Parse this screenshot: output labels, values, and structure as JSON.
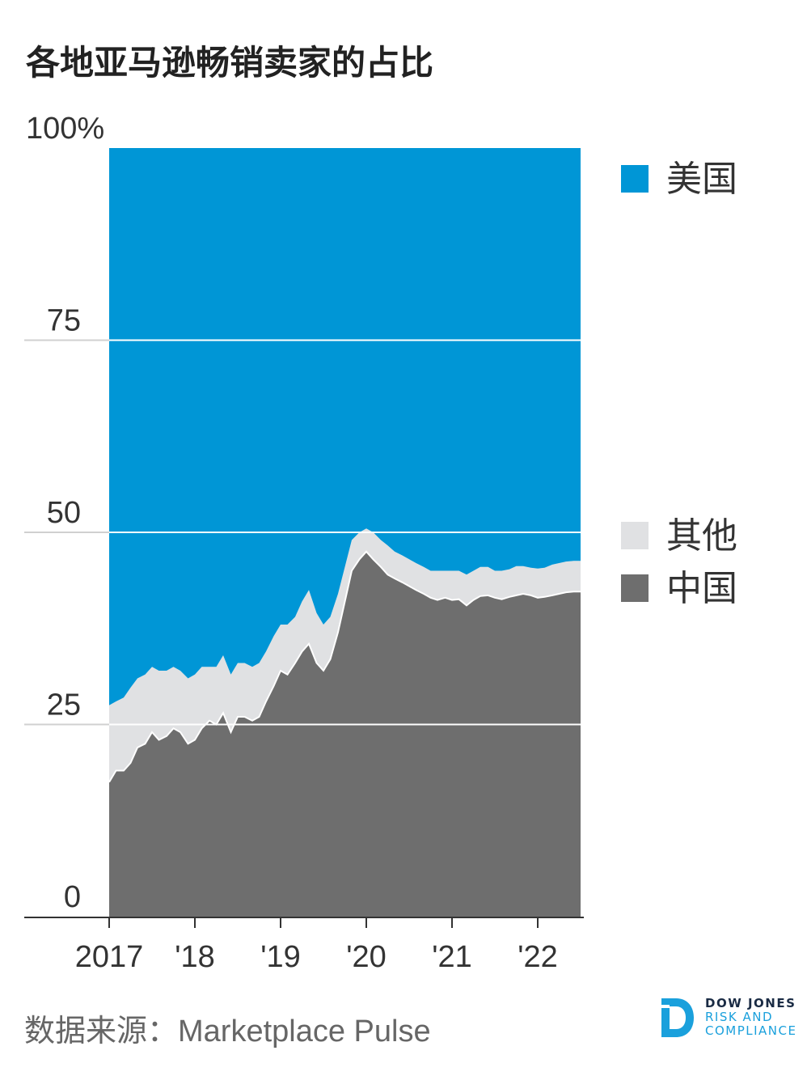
{
  "title": "各地亚马逊畅销卖家的占比",
  "source": "数据来源：Marketplace Pulse",
  "logo": {
    "line1": "DOW JONES",
    "line2": "RISK AND",
    "line3": "COMPLIANCE"
  },
  "colors": {
    "us": "#0096d6",
    "other": "#e0e1e3",
    "china": "#6e6e6e",
    "axis": "#333333",
    "grid": "#ffffff"
  },
  "legend": {
    "us": "美国",
    "other": "其他",
    "china": "中国"
  },
  "chart_data": {
    "type": "area",
    "stacked": true,
    "ylim": [
      0,
      100
    ],
    "y_ticks": [
      0,
      25,
      50,
      75,
      100
    ],
    "y_tick_labels": [
      "0",
      "25",
      "50",
      "75",
      "100%"
    ],
    "x_range": [
      2017.0,
      2022.5
    ],
    "x_ticks": [
      2017,
      2018,
      2019,
      2020,
      2021,
      2022
    ],
    "x_tick_labels": [
      "2017",
      "'18",
      "'19",
      "'20",
      "'21",
      "'22"
    ],
    "x": [
      2017.0,
      2017.08,
      2017.17,
      2017.25,
      2017.33,
      2017.42,
      2017.5,
      2017.58,
      2017.67,
      2017.75,
      2017.83,
      2017.92,
      2018.0,
      2018.08,
      2018.17,
      2018.25,
      2018.33,
      2018.42,
      2018.5,
      2018.58,
      2018.67,
      2018.75,
      2018.83,
      2018.92,
      2019.0,
      2019.08,
      2019.17,
      2019.25,
      2019.33,
      2019.42,
      2019.5,
      2019.58,
      2019.67,
      2019.75,
      2019.83,
      2019.92,
      2020.0,
      2020.08,
      2020.17,
      2020.25,
      2020.33,
      2020.42,
      2020.5,
      2020.58,
      2020.67,
      2020.75,
      2020.83,
      2020.92,
      2021.0,
      2021.08,
      2021.17,
      2021.25,
      2021.33,
      2021.42,
      2021.5,
      2021.58,
      2021.67,
      2021.75,
      2021.83,
      2021.92,
      2022.0,
      2022.08,
      2022.17,
      2022.25,
      2022.33,
      2022.42,
      2022.5
    ],
    "series": [
      {
        "name": "中国",
        "values": [
          17.5,
          19,
          19,
          20,
          22,
          22.5,
          24,
          23,
          23.5,
          24.5,
          24,
          22.5,
          23,
          24.5,
          25.5,
          25,
          26.5,
          24,
          26,
          26,
          25.5,
          26,
          28,
          30,
          32,
          31.5,
          33,
          34.5,
          35.5,
          33,
          32,
          33.5,
          37,
          41,
          45,
          46.5,
          47.5,
          46.5,
          45.5,
          44.5,
          44,
          43.5,
          43,
          42.5,
          42,
          41.5,
          41.2,
          41.5,
          41.2,
          41.3,
          40.5,
          41.2,
          41.7,
          41.8,
          41.5,
          41.3,
          41.6,
          41.8,
          42,
          41.8,
          41.5,
          41.6,
          41.8,
          42,
          42.2,
          42.3,
          42.3
        ]
      },
      {
        "name": "其他",
        "values": [
          10,
          9,
          9.5,
          9.8,
          9,
          9,
          8.5,
          9,
          8.5,
          8,
          8,
          8.5,
          8.5,
          8,
          7,
          7.5,
          7.5,
          7.5,
          7,
          7,
          7,
          7,
          6.5,
          6.5,
          6,
          6.5,
          6,
          6.5,
          7,
          6.5,
          6,
          5.5,
          5,
          4.5,
          4,
          3.5,
          3,
          3.5,
          3.5,
          3.8,
          3.5,
          3.5,
          3.5,
          3.5,
          3.5,
          3.5,
          3.8,
          3.5,
          3.8,
          3.7,
          4,
          3.8,
          3.8,
          3.7,
          3.5,
          3.7,
          3.6,
          3.8,
          3.6,
          3.6,
          3.8,
          3.8,
          4,
          4,
          4,
          4,
          4
        ]
      },
      {
        "name": "美国",
        "values": [
          72.5,
          72,
          71.5,
          70.2,
          69,
          68.5,
          67.5,
          68,
          68,
          67.5,
          68,
          69,
          68.5,
          67.5,
          67.5,
          67.5,
          66,
          68.5,
          67,
          67,
          67.5,
          67,
          65.5,
          63.5,
          62,
          62,
          61,
          59,
          57.5,
          60.5,
          62,
          61,
          58,
          54.5,
          51,
          50,
          49.5,
          50,
          51,
          51.7,
          52.5,
          53,
          53.5,
          54,
          54.5,
          55,
          55,
          55,
          55,
          55,
          55.5,
          55,
          54.5,
          54.5,
          55,
          55,
          54.8,
          54.4,
          54.4,
          54.6,
          54.7,
          54.6,
          54.2,
          54,
          53.8,
          53.7,
          53.7
        ]
      }
    ],
    "grid": true,
    "legend_position": "right"
  }
}
